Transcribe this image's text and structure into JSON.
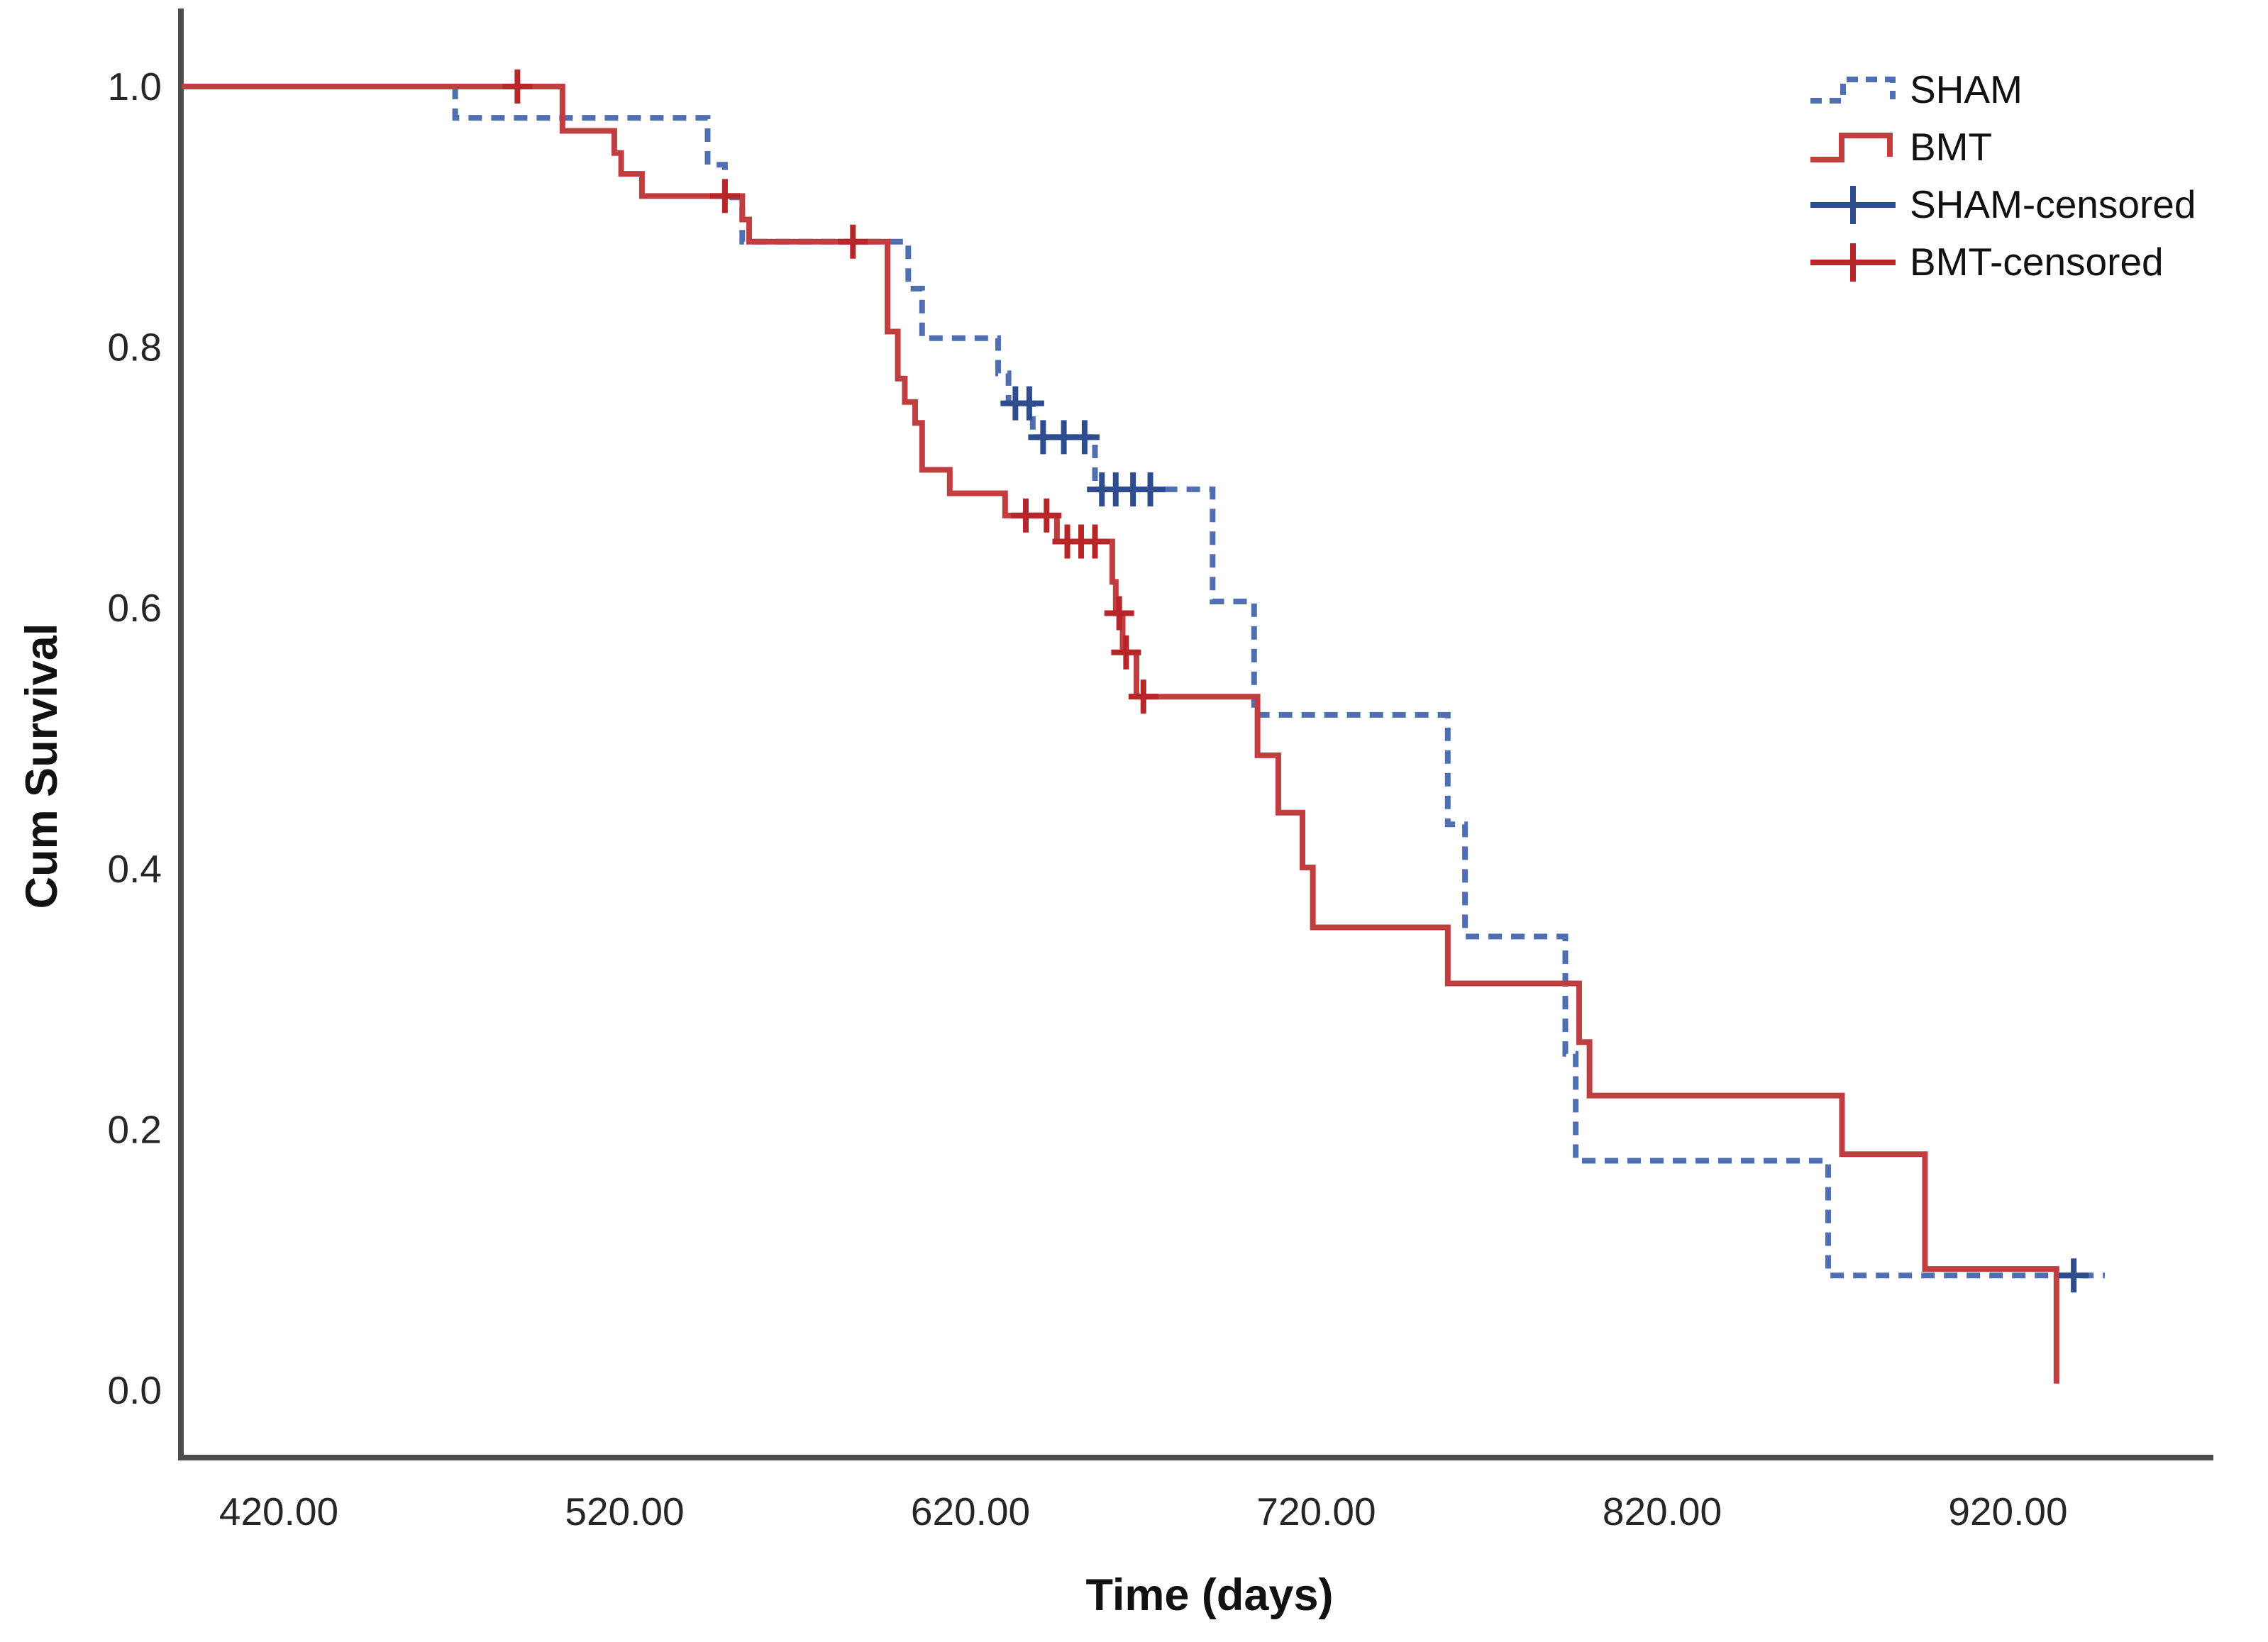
{
  "chart_data": {
    "type": "line",
    "subtype": "kaplan-meier-step",
    "title": "",
    "xlabel": "Time (days)",
    "ylabel": "Cum Survival",
    "x_ticks": [
      420,
      520,
      620,
      720,
      820,
      920
    ],
    "x_tick_labels": [
      "420.00",
      "520.00",
      "620.00",
      "720.00",
      "820.00",
      "920.00"
    ],
    "y_ticks": [
      1.0,
      0.8,
      0.6,
      0.4,
      0.2,
      0.0
    ],
    "y_tick_labels": [
      "1.0",
      "0.8",
      "0.6",
      "0.4",
      "0.2",
      "0.0"
    ],
    "xlim": [
      392,
      965
    ],
    "ylim": [
      0.0,
      1.0
    ],
    "grid": false,
    "legend_position": "top-right",
    "series": [
      {
        "name": "SHAM",
        "style": "dashed",
        "color": "#4f6fb1",
        "steps": [
          [
            392,
            1.0
          ],
          [
            471,
            0.976
          ],
          [
            544,
            0.94
          ],
          [
            549,
            0.915
          ],
          [
            554,
            0.881
          ],
          [
            602,
            0.845
          ],
          [
            606,
            0.807
          ],
          [
            628,
            0.78
          ],
          [
            631,
            0.757
          ],
          [
            638,
            0.731
          ],
          [
            656,
            0.691
          ],
          [
            690,
            0.605
          ],
          [
            702,
            0.518
          ],
          [
            758,
            0.434
          ],
          [
            763,
            0.348
          ],
          [
            792,
            0.258
          ],
          [
            795,
            0.176
          ],
          [
            868,
            0.088
          ],
          [
            948,
            0.088
          ]
        ]
      },
      {
        "name": "BMT",
        "style": "solid",
        "color": "#c03e40",
        "steps": [
          [
            392,
            1.0
          ],
          [
            502,
            0.966
          ],
          [
            517,
            0.949
          ],
          [
            519,
            0.933
          ],
          [
            525,
            0.916
          ],
          [
            554,
            0.898
          ],
          [
            556,
            0.881
          ],
          [
            596,
            0.812
          ],
          [
            599,
            0.776
          ],
          [
            601,
            0.758
          ],
          [
            604,
            0.742
          ],
          [
            606,
            0.706
          ],
          [
            614,
            0.688
          ],
          [
            630,
            0.671
          ],
          [
            645,
            0.651
          ],
          [
            661,
            0.62
          ],
          [
            662,
            0.596
          ],
          [
            664,
            0.566
          ],
          [
            668,
            0.532
          ],
          [
            703,
            0.487
          ],
          [
            709,
            0.443
          ],
          [
            716,
            0.401
          ],
          [
            719,
            0.355
          ],
          [
            758,
            0.312
          ],
          [
            796,
            0.267
          ],
          [
            799,
            0.226
          ],
          [
            872,
            0.181
          ],
          [
            896,
            0.093
          ],
          [
            934,
            0.005
          ]
        ]
      }
    ],
    "censored": [
      {
        "name": "SHAM-censored",
        "color": "#2e4d8f",
        "points": [
          [
            633,
            0.757
          ],
          [
            637,
            0.757
          ],
          [
            641,
            0.731
          ],
          [
            647,
            0.731
          ],
          [
            653,
            0.731
          ],
          [
            658,
            0.691
          ],
          [
            662,
            0.691
          ],
          [
            667,
            0.691
          ],
          [
            672,
            0.691
          ],
          [
            939,
            0.088
          ]
        ]
      },
      {
        "name": "BMT-censored",
        "color": "#b72628",
        "points": [
          [
            489,
            1.0
          ],
          [
            549,
            0.916
          ],
          [
            586,
            0.881
          ],
          [
            636,
            0.671
          ],
          [
            642,
            0.671
          ],
          [
            648,
            0.651
          ],
          [
            652,
            0.651
          ],
          [
            656,
            0.651
          ],
          [
            663,
            0.596
          ],
          [
            665,
            0.566
          ],
          [
            670,
            0.532
          ]
        ]
      }
    ]
  },
  "legend": {
    "items": [
      {
        "label": "SHAM"
      },
      {
        "label": "BMT"
      },
      {
        "label": "SHAM-censored"
      },
      {
        "label": "BMT-censored"
      }
    ]
  }
}
